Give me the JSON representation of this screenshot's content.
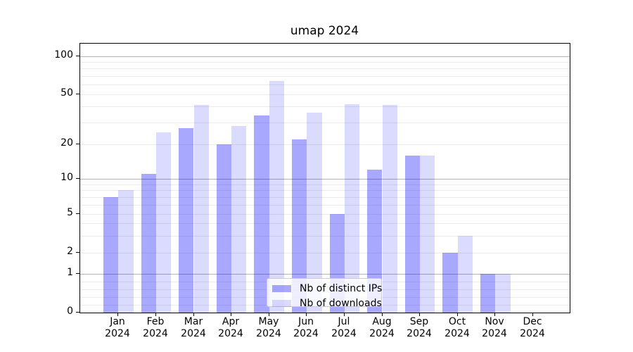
{
  "chart_data": {
    "type": "bar",
    "title": "umap 2024",
    "categories": [
      "Jan 2024",
      "Feb 2024",
      "Mar 2024",
      "Apr 2024",
      "May 2024",
      "Jun 2024",
      "Jul 2024",
      "Aug 2024",
      "Sep 2024",
      "Oct 2024",
      "Nov 2024",
      "Dec 2024"
    ],
    "series": [
      {
        "name": "Nb of distinct IPs",
        "color": "rgba(0,0,255,0.34)",
        "values": [
          7,
          11,
          27,
          20,
          34,
          22,
          5,
          12,
          16,
          2,
          1,
          0
        ]
      },
      {
        "name": "Nb of downloads",
        "color": "rgba(0,0,255,0.14)",
        "values": [
          8,
          25,
          41,
          28,
          64,
          36,
          42,
          41,
          16,
          3,
          1,
          0
        ]
      }
    ],
    "xlabel": "",
    "ylabel": "",
    "y_ticks": [
      0,
      1,
      2,
      5,
      10,
      20,
      50,
      100
    ],
    "ylim": [
      0,
      130
    ],
    "yscale": "asinh-log (linear 0-1, logarithmic above)",
    "grid": "horizontal major and minor gridlines",
    "legend_position": "lower center inside plot",
    "legend_entries": [
      "Nb of distinct IPs",
      "Nb of downloads"
    ]
  }
}
